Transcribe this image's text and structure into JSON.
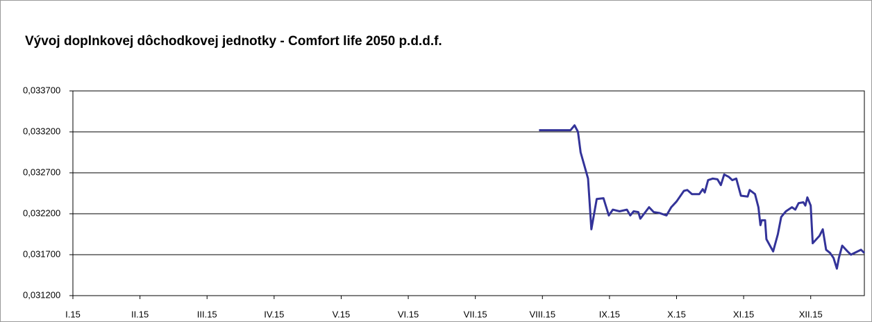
{
  "chart_data": {
    "type": "line",
    "title": "Vývoj doplnkovej dôchodkovej jednotky -  Comfort life 2050 p.d.d.f.",
    "color": "#333399",
    "grid": true,
    "xlim": [
      0,
      11.8
    ],
    "xticks": [
      {
        "value": 0,
        "label": "I.15"
      },
      {
        "value": 1,
        "label": "II.15"
      },
      {
        "value": 2,
        "label": "III.15"
      },
      {
        "value": 3,
        "label": "IV.15"
      },
      {
        "value": 4,
        "label": "V.15"
      },
      {
        "value": 5,
        "label": "VI.15"
      },
      {
        "value": 6,
        "label": "VII.15"
      },
      {
        "value": 7,
        "label": "VIII.15"
      },
      {
        "value": 8,
        "label": "IX.15"
      },
      {
        "value": 9,
        "label": "X.15"
      },
      {
        "value": 10,
        "label": "XI.15"
      },
      {
        "value": 11,
        "label": "XII.15"
      }
    ],
    "ylim": [
      0.0312,
      0.0337
    ],
    "yticks": [
      {
        "value": 0.0312,
        "label": "0,031200"
      },
      {
        "value": 0.0317,
        "label": "0,031700"
      },
      {
        "value": 0.0322,
        "label": "0,032200"
      },
      {
        "value": 0.0327,
        "label": "0,032700"
      },
      {
        "value": 0.0332,
        "label": "0,033200"
      },
      {
        "value": 0.0337,
        "label": "0,033700"
      }
    ],
    "x": [
      6.95,
      7.42,
      7.48,
      7.53,
      7.57,
      7.68,
      7.73,
      7.81,
      7.91,
      7.99,
      8.05,
      8.15,
      8.26,
      8.31,
      8.36,
      8.43,
      8.46,
      8.59,
      8.66,
      8.74,
      8.85,
      8.92,
      9.0,
      9.11,
      9.16,
      9.23,
      9.34,
      9.39,
      9.42,
      9.47,
      9.54,
      9.61,
      9.66,
      9.71,
      9.78,
      9.83,
      9.89,
      9.96,
      10.06,
      10.09,
      10.17,
      10.22,
      10.25,
      10.27,
      10.32,
      10.34,
      10.44,
      10.51,
      10.56,
      10.63,
      10.72,
      10.77,
      10.82,
      10.89,
      10.92,
      10.95,
      11.0,
      11.03,
      11.13,
      11.18,
      11.23,
      11.29,
      11.34,
      11.39,
      11.42,
      11.47,
      11.55,
      11.6,
      11.65,
      11.75,
      11.8
    ],
    "values": [
      0.03322,
      0.03322,
      0.03328,
      0.0332,
      0.03295,
      0.03263,
      0.03201,
      0.03238,
      0.03239,
      0.03218,
      0.03225,
      0.03223,
      0.03225,
      0.03218,
      0.03223,
      0.03222,
      0.03214,
      0.03228,
      0.03222,
      0.03221,
      0.03218,
      0.03228,
      0.03235,
      0.03248,
      0.03249,
      0.03244,
      0.03244,
      0.0325,
      0.03246,
      0.03261,
      0.03263,
      0.03262,
      0.03255,
      0.03268,
      0.03265,
      0.03261,
      0.03263,
      0.03242,
      0.03241,
      0.03249,
      0.03244,
      0.03228,
      0.03206,
      0.03212,
      0.03212,
      0.03189,
      0.03174,
      0.03195,
      0.03216,
      0.03223,
      0.03228,
      0.03225,
      0.03233,
      0.03234,
      0.0323,
      0.0324,
      0.0323,
      0.03184,
      0.03193,
      0.03201,
      0.03176,
      0.03172,
      0.03166,
      0.03153,
      0.03166,
      0.03181,
      0.03174,
      0.0317,
      0.03172,
      0.03176,
      0.03172
    ]
  }
}
